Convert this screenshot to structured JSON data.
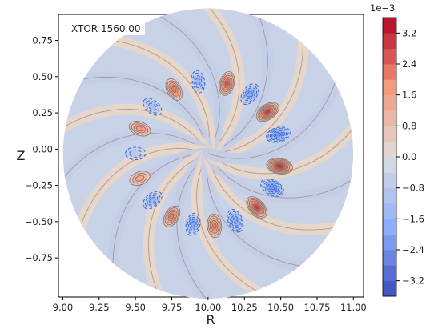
{
  "chart_data": {
    "type": "heatmap",
    "subtype": "filled-contour-on-circular-domain",
    "title": "",
    "annotation": "XTOR 1560.00",
    "xlabel": "R",
    "ylabel": "Z",
    "xlim": [
      8.97,
      11.07
    ],
    "ylim": [
      -1.02,
      0.93
    ],
    "xticks": [
      9.0,
      9.25,
      9.5,
      9.75,
      10.0,
      10.25,
      10.5,
      10.75,
      11.0
    ],
    "xtick_labels": [
      "9.00",
      "9.25",
      "9.50",
      "9.75",
      "10.00",
      "10.25",
      "10.50",
      "10.75",
      "11.00"
    ],
    "yticks": [
      0.75,
      0.5,
      0.25,
      0.0,
      -0.25,
      -0.5,
      -0.75
    ],
    "ytick_labels": [
      "0.75",
      "0.50",
      "0.25",
      "0.00",
      "−0.25",
      "−0.50",
      "−0.75"
    ],
    "domain": {
      "shape": "circle",
      "center_R": 10.0,
      "center_Z": -0.03,
      "radius": 1.0
    },
    "colorbar": {
      "colormap": "coolwarm",
      "scale_label": "1e−3",
      "min": -3.6,
      "max": 3.6,
      "levels": 18,
      "ticks": [
        3.2,
        2.4,
        1.6,
        0.8,
        0.0,
        -0.8,
        -1.6,
        -2.4,
        -3.2
      ],
      "tick_labels": [
        "3.2",
        "2.4",
        "1.6",
        "0.8",
        "0.0",
        "−0.8",
        "−1.6",
        "−2.4",
        "−3.2"
      ]
    },
    "mode": {
      "description_values": "ring of alternating positive and negative lobes",
      "lobe_radius": 0.5,
      "lobes": [
        {
          "angle_deg": -10,
          "value": 3.4
        },
        {
          "angle_deg": 15,
          "value": -2.6
        },
        {
          "angle_deg": 35,
          "value": 3.0
        },
        {
          "angle_deg": 55,
          "value": -2.2
        },
        {
          "angle_deg": 75,
          "value": 2.6
        },
        {
          "angle_deg": 98,
          "value": -1.8
        },
        {
          "angle_deg": 118,
          "value": 2.2
        },
        {
          "angle_deg": 140,
          "value": -1.4
        },
        {
          "angle_deg": 160,
          "value": 1.8
        },
        {
          "angle_deg": 180,
          "value": -1.0
        },
        {
          "angle_deg": 200,
          "value": 1.4
        },
        {
          "angle_deg": 220,
          "value": -1.6
        },
        {
          "angle_deg": 240,
          "value": 2.0
        },
        {
          "angle_deg": 258,
          "value": -2.0
        },
        {
          "angle_deg": 275,
          "value": 2.4
        },
        {
          "angle_deg": 292,
          "value": -2.4
        },
        {
          "angle_deg": 312,
          "value": 3.0
        },
        {
          "angle_deg": 332,
          "value": -2.8
        }
      ]
    },
    "colors": {
      "background_fill": "#c9d3e8",
      "positive_max": "#b40426",
      "negative_max": "#3b4cc0",
      "contour_positive": "#8a6a60",
      "contour_negative": "#3b6ad8"
    }
  }
}
